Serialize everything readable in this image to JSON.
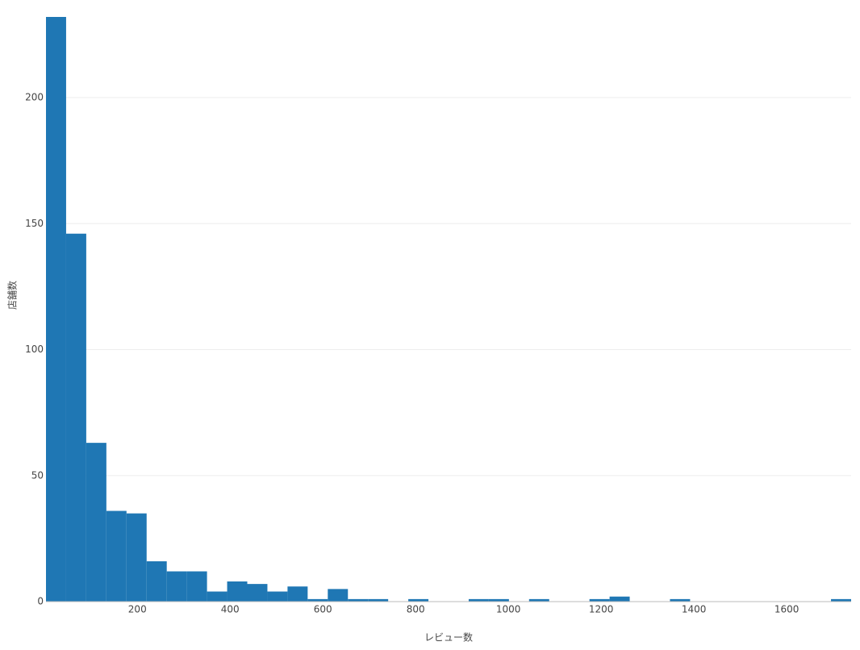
{
  "chart_data": {
    "type": "histogram",
    "x_label": "レビュー数",
    "y_label": "店舗数",
    "bins": [
      3,
      46.4,
      89.8,
      133.2,
      176.6,
      220,
      263.4,
      306.8,
      350.2,
      393.6,
      437,
      480.4,
      523.8,
      567.2,
      610.6,
      654,
      697.4,
      740.8,
      784.2,
      827.6,
      871,
      914.4,
      957.8,
      1001.2,
      1044.6,
      1088,
      1131.4,
      1174.8,
      1218.2,
      1261.6,
      1305,
      1348.4,
      1391.8,
      1435.2,
      1478.6,
      1522,
      1565.4,
      1608.8,
      1652.2,
      1695.6,
      1739
    ],
    "counts": [
      232,
      146,
      63,
      36,
      35,
      16,
      12,
      12,
      4,
      8,
      7,
      4,
      6,
      1,
      5,
      1,
      1,
      0,
      1,
      0,
      0,
      1,
      1,
      0,
      1,
      0,
      0,
      1,
      2,
      0,
      0,
      1,
      0,
      0,
      0,
      0,
      0,
      0,
      0,
      1
    ],
    "color": "#1f77b4",
    "xlim": [
      3,
      1739
    ],
    "xticks": [
      200,
      400,
      600,
      800,
      1000,
      1200,
      1400,
      1600
    ],
    "ylim": [
      0,
      232
    ],
    "yticks": [
      0,
      50,
      100,
      150,
      200
    ],
    "grid": true
  }
}
